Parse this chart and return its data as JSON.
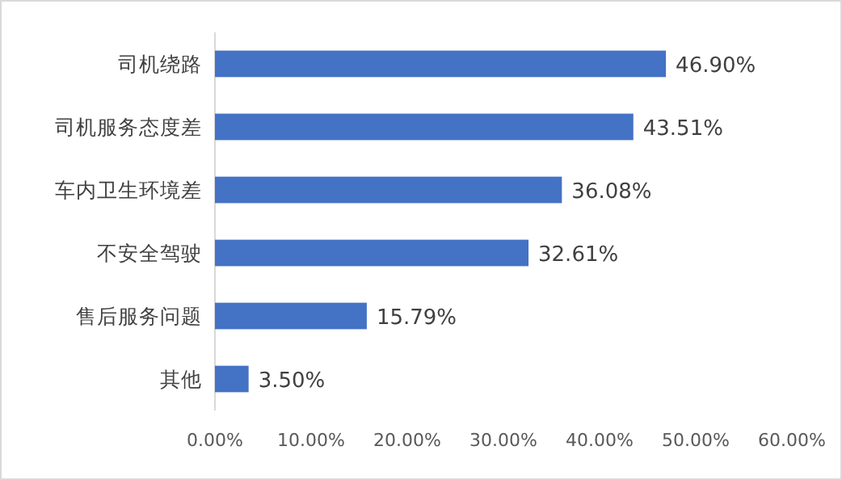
{
  "chart_data": {
    "type": "bar",
    "orientation": "horizontal",
    "categories": [
      "司机绕路",
      "司机服务态度差",
      "车内卫生环境差",
      "不安全驾驶",
      "售后服务问题",
      "其他"
    ],
    "values": [
      46.9,
      43.51,
      36.08,
      32.61,
      15.79,
      3.5
    ],
    "value_labels": [
      "46.90%",
      "43.51%",
      "36.08%",
      "32.61%",
      "15.79%",
      "3.50%"
    ],
    "color": "#4472c4",
    "xlim": [
      0,
      60
    ],
    "xticks": [
      {
        "value": 0,
        "label": "0.00%"
      },
      {
        "value": 10,
        "label": "10.00%"
      },
      {
        "value": 20,
        "label": "20.00%"
      },
      {
        "value": 30,
        "label": "30.00%"
      },
      {
        "value": 40,
        "label": "40.00%"
      },
      {
        "value": 50,
        "label": "50.00%"
      },
      {
        "value": 60,
        "label": "60.00%"
      }
    ],
    "grid": false
  }
}
